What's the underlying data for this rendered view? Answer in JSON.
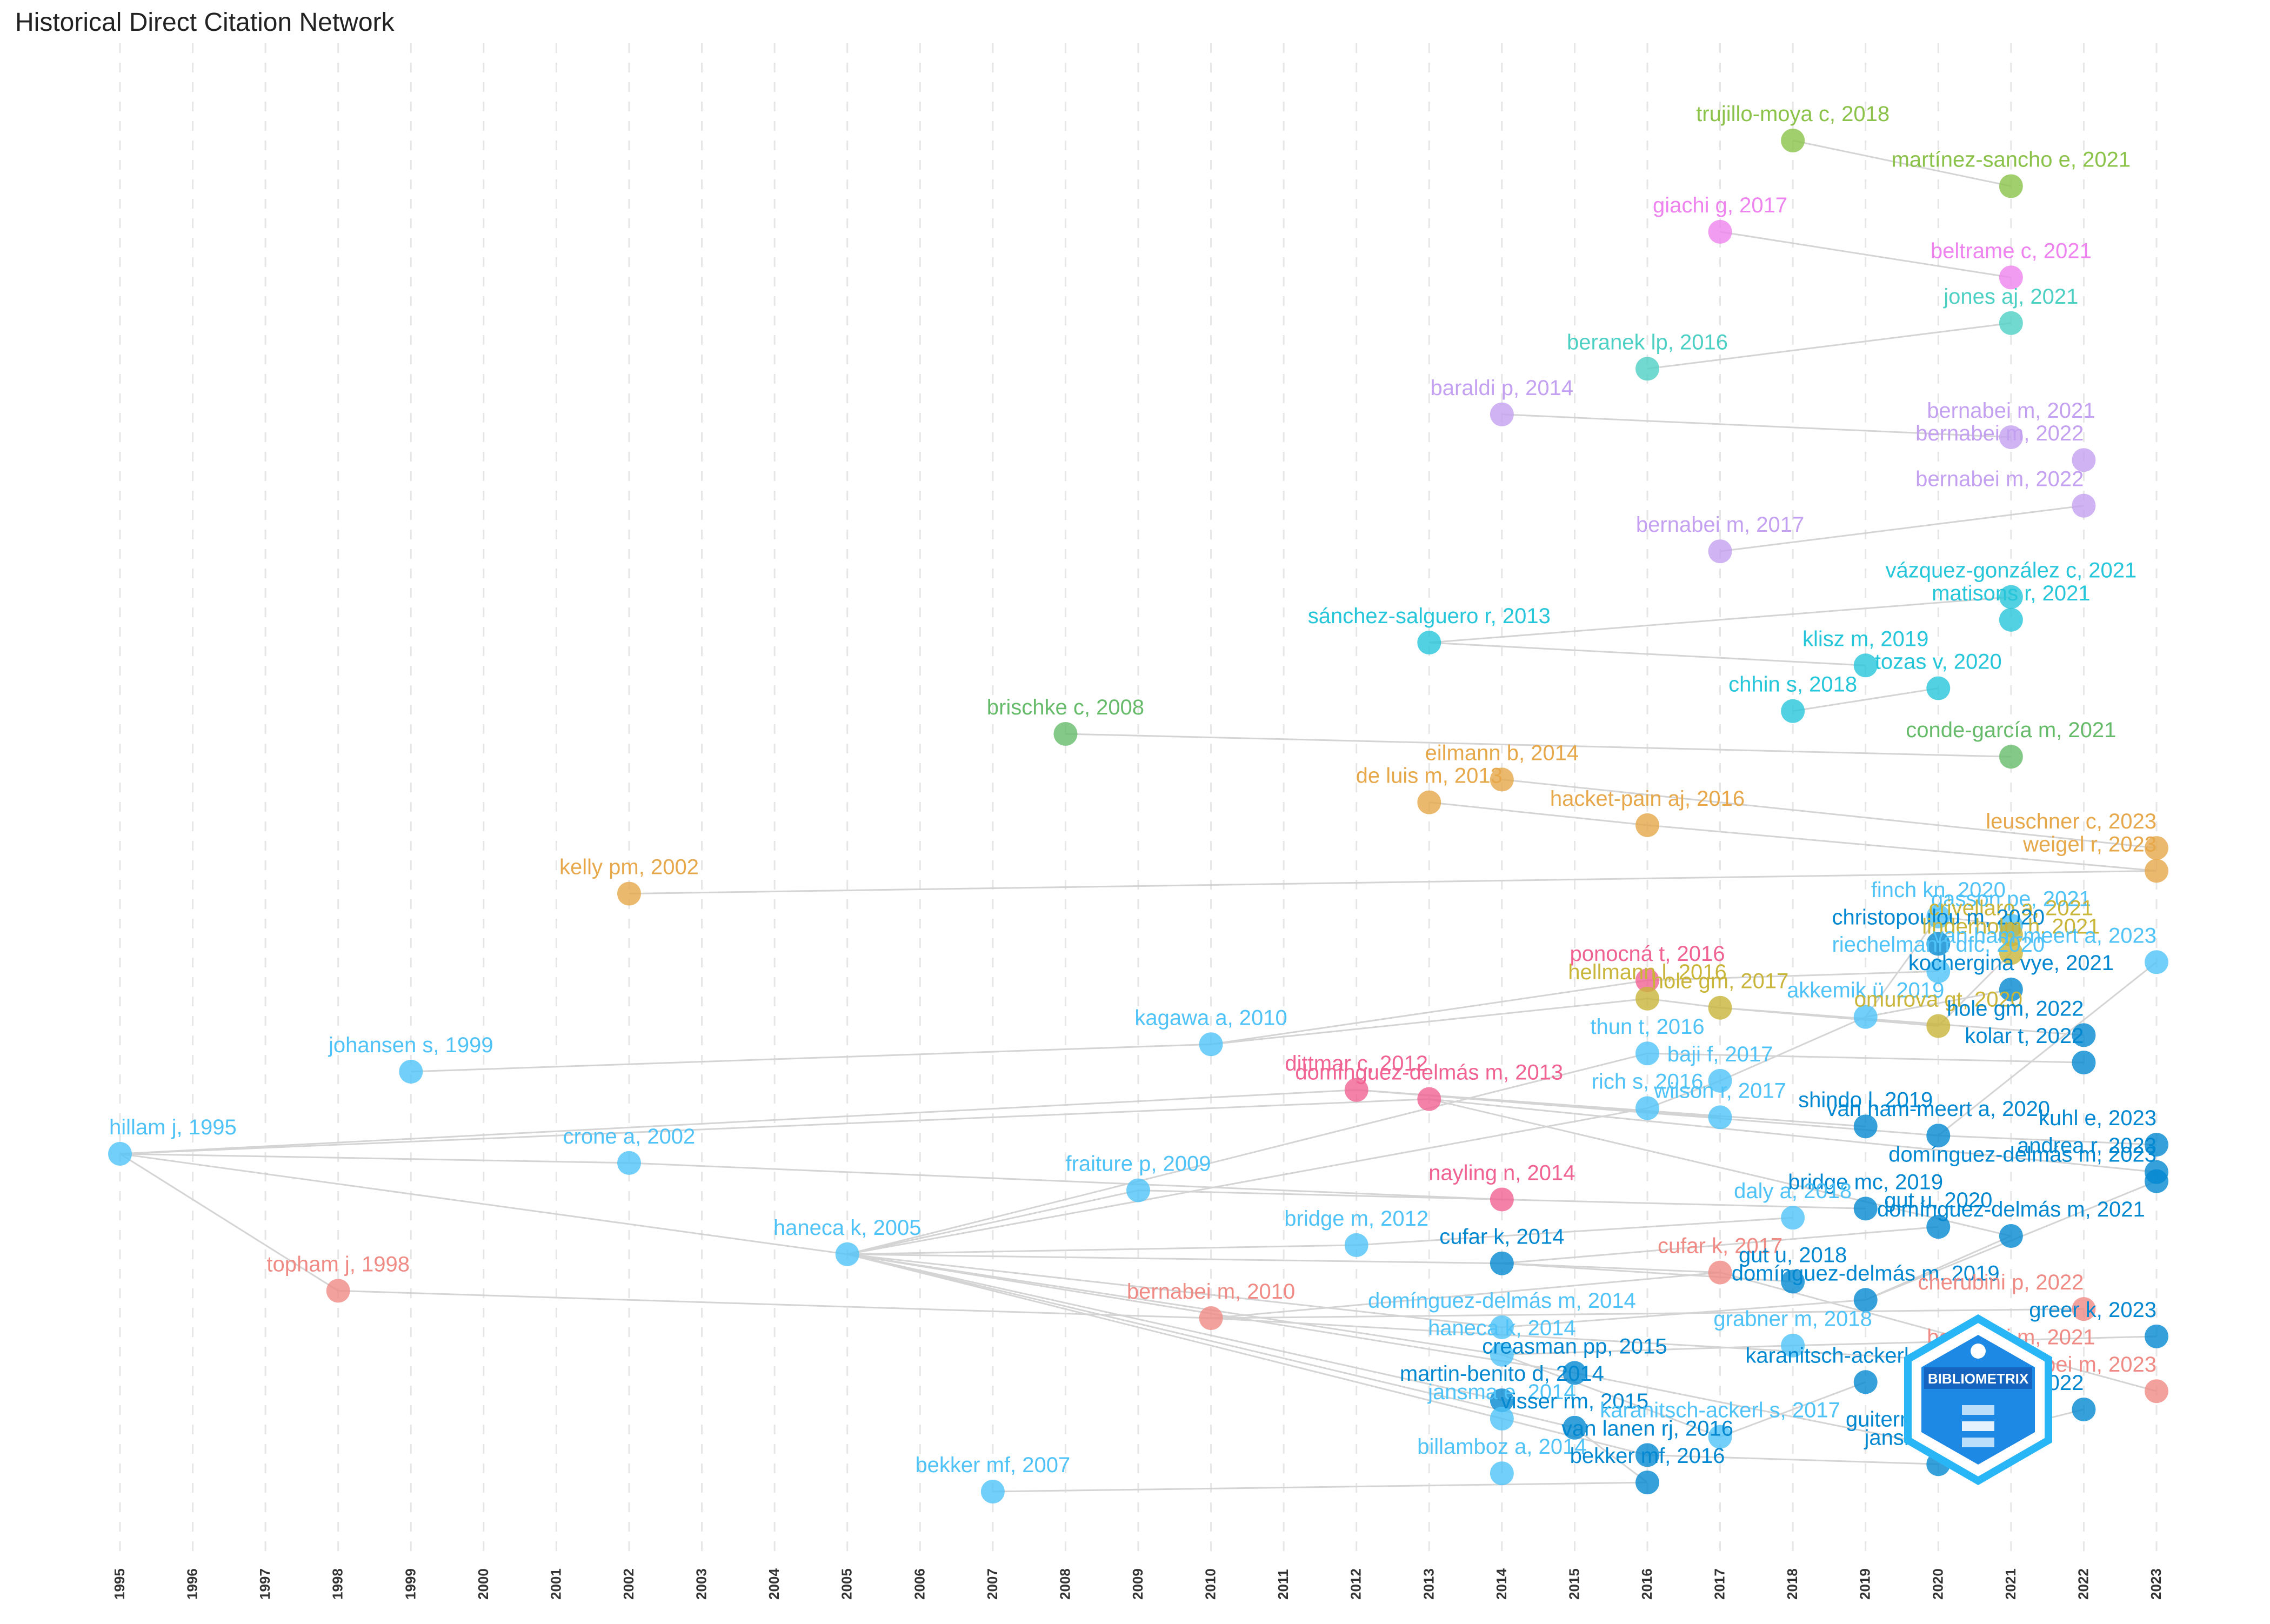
{
  "title": "Historical Direct Citation Network",
  "logo": {
    "text": "BIBLIOMETRIX",
    "colors": [
      "#1565c0",
      "#29b6f6"
    ]
  },
  "chart_data": {
    "type": "network",
    "title": "Historical Direct Citation Network",
    "xaxis": {
      "type": "year",
      "range": [
        1995,
        2023
      ],
      "grid": true,
      "ticks": [
        "1995",
        "1996",
        "1997",
        "1998",
        "1999",
        "2000",
        "2001",
        "2002",
        "2003",
        "2004",
        "2005",
        "2006",
        "2007",
        "2008",
        "2009",
        "2010",
        "2011",
        "2012",
        "2013",
        "2014",
        "2015",
        "2016",
        "2017",
        "2018",
        "2019",
        "2020",
        "2021",
        "2022",
        "2023"
      ]
    },
    "colors": {
      "blue": "#4fc3f7",
      "blue_dark": "#0288d1",
      "cyan": "#26c6da",
      "teal": "#4dd0c4",
      "green": "#66bb6a",
      "lime": "#8bc34a",
      "orange": "#e6a84a",
      "gold": "#c9b53a",
      "red": "#f08a84",
      "pink": "#f06292",
      "magenta": "#ee82ee",
      "purple": "#c3a0f0",
      "edge": "#d4d4d4"
    },
    "nodes": [
      {
        "id": "trujillo",
        "label": "trujillo-moya c, 2018",
        "year": 2018,
        "row": 1,
        "color": "lime"
      },
      {
        "id": "martinez",
        "label": "martínez-sancho e, 2021",
        "year": 2021,
        "row": 2,
        "color": "lime"
      },
      {
        "id": "giachi",
        "label": "giachi g, 2017",
        "year": 2017,
        "row": 3,
        "color": "magenta"
      },
      {
        "id": "beltrame",
        "label": "beltrame c, 2021",
        "year": 2021,
        "row": 4,
        "color": "magenta"
      },
      {
        "id": "jones",
        "label": "jones aj, 2021",
        "year": 2021,
        "row": 5,
        "color": "teal"
      },
      {
        "id": "beranek",
        "label": "beranek lp, 2016",
        "year": 2016,
        "row": 6,
        "color": "teal"
      },
      {
        "id": "baraldi",
        "label": "baraldi p, 2014",
        "year": 2014,
        "row": 7,
        "color": "purple"
      },
      {
        "id": "bernabei21",
        "label": "bernabei m, 2021",
        "year": 2021,
        "row": 7.5,
        "color": "purple"
      },
      {
        "id": "bernabei22a",
        "label": "bernabei m, 2022",
        "year": 2022,
        "row": 8,
        "color": "purple"
      },
      {
        "id": "bernabei22b",
        "label": "bernabei m, 2022",
        "year": 2022,
        "row": 9,
        "color": "purple"
      },
      {
        "id": "bernabei17",
        "label": "bernabei m, 2017",
        "year": 2017,
        "row": 10,
        "color": "purple"
      },
      {
        "id": "vazquez",
        "label": "vázquez-gonzález c, 2021",
        "year": 2021,
        "row": 11,
        "color": "cyan"
      },
      {
        "id": "matisons",
        "label": "matisons r, 2021",
        "year": 2021,
        "row": 11.5,
        "color": "cyan"
      },
      {
        "id": "sanchez",
        "label": "sánchez-salguero r, 2013",
        "year": 2013,
        "row": 12,
        "color": "cyan"
      },
      {
        "id": "klisz",
        "label": "klisz m, 2019",
        "year": 2019,
        "row": 12.5,
        "color": "cyan"
      },
      {
        "id": "tozas",
        "label": "tozas v, 2020",
        "year": 2020,
        "row": 13,
        "color": "cyan"
      },
      {
        "id": "chhin",
        "label": "chhin s, 2018",
        "year": 2018,
        "row": 13.5,
        "color": "cyan"
      },
      {
        "id": "brischke",
        "label": "brischke c, 2008",
        "year": 2008,
        "row": 14,
        "color": "green"
      },
      {
        "id": "conde",
        "label": "conde-garcía m, 2021",
        "year": 2021,
        "row": 14.5,
        "color": "green"
      },
      {
        "id": "eilmann",
        "label": "eilmann b, 2014",
        "year": 2014,
        "row": 15,
        "color": "orange"
      },
      {
        "id": "deluis",
        "label": "de luis m, 2013",
        "year": 2013,
        "row": 15.5,
        "color": "orange"
      },
      {
        "id": "hacket",
        "label": "hacket-pain aj, 2016",
        "year": 2016,
        "row": 16,
        "color": "orange"
      },
      {
        "id": "leuschner",
        "label": "leuschner c, 2023",
        "year": 2023,
        "row": 16.5,
        "color": "orange"
      },
      {
        "id": "weigel",
        "label": "weigel r, 2023",
        "year": 2023,
        "row": 17,
        "color": "orange"
      },
      {
        "id": "kelly",
        "label": "kelly pm, 2002",
        "year": 2002,
        "row": 17.5,
        "color": "orange"
      },
      {
        "id": "finch",
        "label": "finch kn, 2020",
        "year": 2020,
        "row": 18,
        "color": "blue"
      },
      {
        "id": "gasson",
        "label": "gasson pe, 2021",
        "year": 2021,
        "row": 18.2,
        "color": "blue"
      },
      {
        "id": "crivellaro",
        "label": "crivellaro a, 2021",
        "year": 2021,
        "row": 18.4,
        "color": "gold"
      },
      {
        "id": "christopoulou",
        "label": "christopoulou m, 2020",
        "year": 2020,
        "row": 18.6,
        "color": "blue_dark"
      },
      {
        "id": "linderholm",
        "label": "linderholm h, 2021",
        "year": 2021,
        "row": 18.8,
        "color": "gold"
      },
      {
        "id": "vanhamA",
        "label": "van ham-meert a, 2023",
        "year": 2023,
        "row": 19,
        "color": "blue"
      },
      {
        "id": "riechelmann",
        "label": "riechelmann dfc, 2020",
        "year": 2020,
        "row": 19.2,
        "color": "blue"
      },
      {
        "id": "ponocna",
        "label": "ponocná t, 2016",
        "year": 2016,
        "row": 19.4,
        "color": "pink"
      },
      {
        "id": "kochergina",
        "label": "kochergina vye, 2021",
        "year": 2021,
        "row": 19.6,
        "color": "blue_dark"
      },
      {
        "id": "hellmann",
        "label": "hellmann l, 2016",
        "year": 2016,
        "row": 19.8,
        "color": "gold"
      },
      {
        "id": "holegm17",
        "label": "hole gm, 2017",
        "year": 2017,
        "row": 20,
        "color": "gold"
      },
      {
        "id": "akkemik",
        "label": "akkemik ü, 2019",
        "year": 2019,
        "row": 20.2,
        "color": "blue"
      },
      {
        "id": "omurova",
        "label": "omurova gt, 2020",
        "year": 2020,
        "row": 20.4,
        "color": "gold"
      },
      {
        "id": "holegm22",
        "label": "hole gm, 2022",
        "year": 2022,
        "row": 20.6,
        "color": "blue_dark"
      },
      {
        "id": "kagawa",
        "label": "kagawa a, 2010",
        "year": 2010,
        "row": 20.8,
        "color": "blue"
      },
      {
        "id": "thun",
        "label": "thun t, 2016",
        "year": 2016,
        "row": 21,
        "color": "blue"
      },
      {
        "id": "kolar",
        "label": "kolar t, 2022",
        "year": 2022,
        "row": 21.2,
        "color": "blue_dark"
      },
      {
        "id": "johansen",
        "label": "johansen s, 1999",
        "year": 1999,
        "row": 21.4,
        "color": "blue"
      },
      {
        "id": "bajif",
        "label": "baji f, 2017",
        "year": 2017,
        "row": 21.6,
        "color": "blue"
      },
      {
        "id": "dittmar",
        "label": "dittmar c, 2012",
        "year": 2012,
        "row": 21.8,
        "color": "pink"
      },
      {
        "id": "domdelmas13",
        "label": "domínguez-delmás m, 2013",
        "year": 2013,
        "row": 22,
        "color": "pink"
      },
      {
        "id": "richs",
        "label": "rich s, 2016",
        "year": 2016,
        "row": 22.2,
        "color": "blue"
      },
      {
        "id": "wilson",
        "label": "wilson r, 2017",
        "year": 2017,
        "row": 22.4,
        "color": "blue"
      },
      {
        "id": "shindo",
        "label": "shindo l, 2019",
        "year": 2019,
        "row": 22.6,
        "color": "blue_dark"
      },
      {
        "id": "vanhamB",
        "label": "van ham-meert a, 2020",
        "year": 2020,
        "row": 22.8,
        "color": "blue_dark"
      },
      {
        "id": "kuhl",
        "label": "kuhl e, 2023",
        "year": 2023,
        "row": 23,
        "color": "blue_dark"
      },
      {
        "id": "hillam",
        "label": "hillam j, 1995",
        "year": 1995,
        "row": 23.2,
        "color": "blue"
      },
      {
        "id": "crone",
        "label": "crone a, 2002",
        "year": 2002,
        "row": 23.4,
        "color": "blue"
      },
      {
        "id": "andrea",
        "label": "andrea r, 2023",
        "year": 2023,
        "row": 23.6,
        "color": "blue_dark"
      },
      {
        "id": "domdelmas23",
        "label": "domínguez-delmás m, 2023",
        "year": 2023,
        "row": 23.8,
        "color": "blue_dark"
      },
      {
        "id": "fraiture",
        "label": "fraiture p, 2009",
        "year": 2009,
        "row": 24,
        "color": "blue"
      },
      {
        "id": "nayling",
        "label": "nayling n, 2014",
        "year": 2014,
        "row": 24.2,
        "color": "pink"
      },
      {
        "id": "bridgemc",
        "label": "bridge mc, 2019",
        "year": 2019,
        "row": 24.4,
        "color": "blue_dark"
      },
      {
        "id": "dalya",
        "label": "daly a, 2018",
        "year": 2018,
        "row": 24.6,
        "color": "blue"
      },
      {
        "id": "gutu20",
        "label": "gut u, 2020",
        "year": 2020,
        "row": 24.8,
        "color": "blue_dark"
      },
      {
        "id": "domdelmas21",
        "label": "domínguez-delmás m, 2021",
        "year": 2021,
        "row": 25,
        "color": "blue_dark"
      },
      {
        "id": "bridge12",
        "label": "bridge m, 2012",
        "year": 2012,
        "row": 25.2,
        "color": "blue"
      },
      {
        "id": "haneca05",
        "label": "haneca k, 2005",
        "year": 2005,
        "row": 25.4,
        "color": "blue"
      },
      {
        "id": "cufar14",
        "label": "cufar k, 2014",
        "year": 2014,
        "row": 25.6,
        "color": "blue_dark"
      },
      {
        "id": "cufar17",
        "label": "cufar k, 2017",
        "year": 2017,
        "row": 25.8,
        "color": "red"
      },
      {
        "id": "gutu18",
        "label": "gut u, 2018",
        "year": 2018,
        "row": 26,
        "color": "blue_dark"
      },
      {
        "id": "topham",
        "label": "topham j, 1998",
        "year": 1998,
        "row": 26.2,
        "color": "red"
      },
      {
        "id": "domdelmas19",
        "label": "domínguez-delmás m, 2019",
        "year": 2019,
        "row": 26.4,
        "color": "blue_dark"
      },
      {
        "id": "cherubini",
        "label": "cherubini p, 2022",
        "year": 2022,
        "row": 26.6,
        "color": "red"
      },
      {
        "id": "bernabei10",
        "label": "bernabei m, 2010",
        "year": 2010,
        "row": 26.8,
        "color": "red"
      },
      {
        "id": "domdelmas14",
        "label": "domínguez-delmás m, 2014",
        "year": 2014,
        "row": 27,
        "color": "blue"
      },
      {
        "id": "greer",
        "label": "greer k, 2023",
        "year": 2023,
        "row": 27.2,
        "color": "blue_dark"
      },
      {
        "id": "grabner",
        "label": "grabner m, 2018",
        "year": 2018,
        "row": 27.4,
        "color": "blue"
      },
      {
        "id": "haneca14",
        "label": "haneca k, 2014",
        "year": 2014,
        "row": 27.6,
        "color": "blue"
      },
      {
        "id": "bernabei21r",
        "label": "bernabei m, 2021",
        "year": 2021,
        "row": 27.8,
        "color": "red"
      },
      {
        "id": "cressman",
        "label": "creasman pp, 2015",
        "year": 2015,
        "row": 28,
        "color": "blue_dark"
      },
      {
        "id": "karanitsch19",
        "label": "karanitsch-ackerl s, 2019",
        "year": 2019,
        "row": 28.2,
        "color": "blue_dark"
      },
      {
        "id": "bernabei23",
        "label": "bernabei m, 2023",
        "year": 2023,
        "row": 28.4,
        "color": "red"
      },
      {
        "id": "martinbenito",
        "label": "martin-benito d, 2014",
        "year": 2014,
        "row": 28.6,
        "color": "blue_dark"
      },
      {
        "id": "mundo",
        "label": "mundo ia, 2022",
        "year": 2022,
        "row": 28.8,
        "color": "blue_dark"
      },
      {
        "id": "jansma14",
        "label": "jansma e, 2014",
        "year": 2014,
        "row": 29,
        "color": "blue"
      },
      {
        "id": "visser",
        "label": "visser rm, 2015",
        "year": 2015,
        "row": 29.2,
        "color": "blue_dark"
      },
      {
        "id": "karanitsch17",
        "label": "karanitsch-ackerl s, 2017",
        "year": 2017,
        "row": 29.4,
        "color": "blue"
      },
      {
        "id": "guiterman",
        "label": "guiterman ch, 2020",
        "year": 2020,
        "row": 29.6,
        "color": "blue_dark"
      },
      {
        "id": "vanlanen",
        "label": "van lanen rj, 2016",
        "year": 2016,
        "row": 29.8,
        "color": "blue_dark"
      },
      {
        "id": "jansma20",
        "label": "jansma e, 2020",
        "year": 2020,
        "row": 30,
        "color": "blue_dark"
      },
      {
        "id": "billamboz",
        "label": "billamboz a, 2014",
        "year": 2014,
        "row": 30.2,
        "color": "blue"
      },
      {
        "id": "bekker16",
        "label": "bekker mf, 2016",
        "year": 2016,
        "row": 30.4,
        "color": "blue_dark"
      },
      {
        "id": "bekker07",
        "label": "bekker mf, 2007",
        "year": 2007,
        "row": 30.6,
        "color": "blue"
      }
    ],
    "edges": [
      [
        "martinez",
        "trujillo"
      ],
      [
        "beltrame",
        "giachi"
      ],
      [
        "jones",
        "beranek"
      ],
      [
        "bernabei21",
        "baraldi"
      ],
      [
        "bernabei22b",
        "bernabei17"
      ],
      [
        "vazquez",
        "sanchez"
      ],
      [
        "klisz",
        "sanchez"
      ],
      [
        "tozas",
        "chhin"
      ],
      [
        "conde",
        "brischke"
      ],
      [
        "hacket",
        "deluis"
      ],
      [
        "weigel",
        "hacket"
      ],
      [
        "weigel",
        "kelly"
      ],
      [
        "leuschner",
        "eilmann"
      ],
      [
        "kagawa",
        "johansen"
      ],
      [
        "crone",
        "hillam"
      ],
      [
        "haneca05",
        "hillam"
      ],
      [
        "topham",
        "hillam"
      ],
      [
        "fraiture",
        "haneca05"
      ],
      [
        "bridge12",
        "haneca05"
      ],
      [
        "cufar14",
        "haneca05"
      ],
      [
        "bernabei10",
        "topham"
      ],
      [
        "domdelmas13",
        "hillam"
      ],
      [
        "dittmar",
        "hillam"
      ],
      [
        "nayling",
        "crone"
      ],
      [
        "hellmann",
        "kagawa"
      ],
      [
        "ponocna",
        "kagawa"
      ],
      [
        "thun",
        "haneca05"
      ],
      [
        "richs",
        "haneca05"
      ],
      [
        "domdelmas14",
        "haneca05"
      ],
      [
        "haneca14",
        "haneca05"
      ],
      [
        "cressman",
        "haneca05"
      ],
      [
        "jansma14",
        "haneca05"
      ],
      [
        "visser",
        "haneca05"
      ],
      [
        "martinbenito",
        "haneca05"
      ],
      [
        "vanlanen",
        "jansma14"
      ],
      [
        "billamboz",
        "jansma14"
      ],
      [
        "bekker16",
        "visser"
      ],
      [
        "bekker16",
        "bekker07"
      ],
      [
        "wilson",
        "dittmar"
      ],
      [
        "shindo",
        "dittmar"
      ],
      [
        "vanhamB",
        "dittmar"
      ],
      [
        "bridgemc",
        "fraiture"
      ],
      [
        "dalya",
        "bridge12"
      ],
      [
        "gutu20",
        "cufar14"
      ],
      [
        "domdelmas21",
        "domdelmas13"
      ],
      [
        "domdelmas19",
        "domdelmas14"
      ],
      [
        "cufar17",
        "bernabei10"
      ],
      [
        "cherubini",
        "bernabei10"
      ],
      [
        "bernabei21r",
        "bernabei10"
      ],
      [
        "bernabei23",
        "cufar17"
      ],
      [
        "greer",
        "grabner"
      ],
      [
        "grabner",
        "haneca14"
      ],
      [
        "karanitsch19",
        "karanitsch17"
      ],
      [
        "karanitsch17",
        "haneca14"
      ],
      [
        "guiterman",
        "cressman"
      ],
      [
        "jansma20",
        "vanlanen"
      ],
      [
        "mundo",
        "guiterman"
      ],
      [
        "kuhl",
        "vanhamB"
      ],
      [
        "andrea",
        "domdelmas13"
      ],
      [
        "domdelmas23",
        "domdelmas19"
      ],
      [
        "holegm22",
        "holegm17"
      ],
      [
        "holegm17",
        "hellmann"
      ],
      [
        "omurova",
        "holegm17"
      ],
      [
        "kolar",
        "thun"
      ],
      [
        "akkemik",
        "bajif"
      ],
      [
        "bajif",
        "richs"
      ],
      [
        "riechelmann",
        "ponocna"
      ],
      [
        "kochergina",
        "akkemik"
      ],
      [
        "christopoulou",
        "riechelmann"
      ],
      [
        "linderholm",
        "omurova"
      ],
      [
        "crivellaro",
        "linderholm"
      ],
      [
        "gasson",
        "finch"
      ],
      [
        "vanhamA",
        "vanhamB"
      ],
      [
        "finch",
        "akkemik"
      ],
      [
        "gutu18",
        "cufar14"
      ],
      [
        "cufar17",
        "cufar14"
      ],
      [
        "domdelmas21",
        "domdelmas19"
      ]
    ]
  }
}
